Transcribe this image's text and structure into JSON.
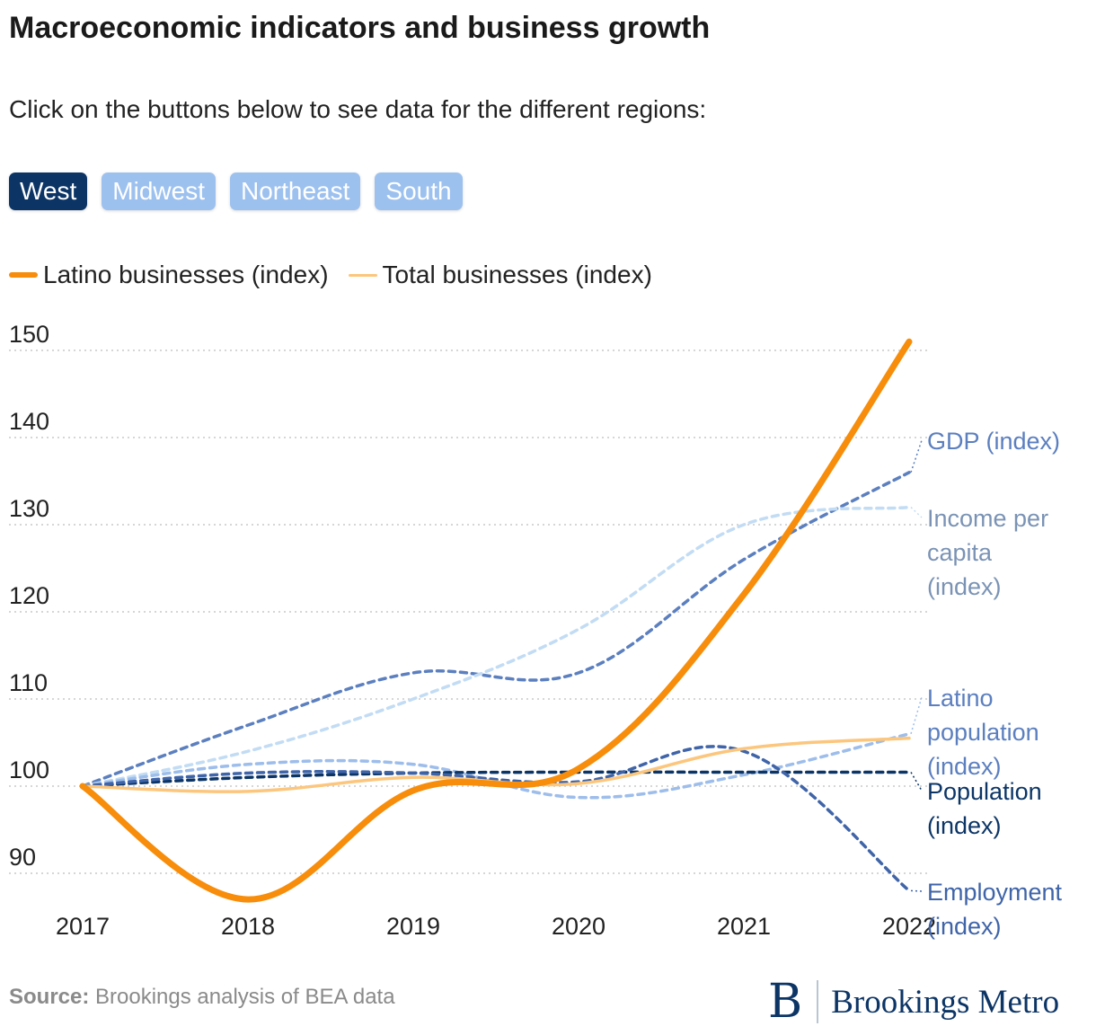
{
  "title": "Macroeconomic indicators and business growth",
  "subtitle": "Click on the buttons below to see data for the different regions:",
  "regions": {
    "active": "West",
    "buttons": [
      "West",
      "Midwest",
      "Northeast",
      "South"
    ]
  },
  "legend": {
    "latino": "Latino businesses (index)",
    "total": "Total businesses (index)"
  },
  "source": {
    "label": "Source:",
    "text": "Brookings analysis of BEA data"
  },
  "brand": {
    "initial": "B",
    "name": "Brookings Metro"
  },
  "colors": {
    "latino_businesses": "#f78d0a",
    "total_businesses": "#fcc67d",
    "gdp": "#5b7fbf",
    "income": "#c2dcf4",
    "latino_population": "#9dbdeb",
    "population": "#0c3566",
    "employment": "#3f64a8",
    "active_button": "#0c3566",
    "inactive_button": "#9dc1ee"
  },
  "chart_data": {
    "type": "line",
    "region": "West",
    "x": [
      2017,
      2018,
      2019,
      2020,
      2021,
      2022
    ],
    "ylim": [
      86,
      151
    ],
    "yticks": [
      90,
      100,
      110,
      120,
      130,
      140,
      150
    ],
    "grid": true,
    "series": [
      {
        "name": "Latino businesses (index)",
        "key": "latino_businesses",
        "style": "solid-thick",
        "values": [
          100,
          87,
          99.5,
          102,
          122,
          151
        ]
      },
      {
        "name": "Total businesses (index)",
        "key": "total_businesses",
        "style": "solid-thin",
        "values": [
          100,
          99.4,
          101,
          100.3,
          104.3,
          105.5
        ]
      },
      {
        "name": "GDP (index)",
        "key": "gdp",
        "style": "dashed",
        "label": "GDP (index)",
        "values": [
          100,
          107,
          113,
          113,
          126,
          136
        ]
      },
      {
        "name": "Income per capita (index)",
        "key": "income",
        "style": "dashed",
        "label": "Income per capita (index)",
        "values": [
          100,
          104,
          110,
          118,
          130,
          132
        ]
      },
      {
        "name": "Latino population (index)",
        "key": "latino_population",
        "style": "dashed",
        "label": "Latino population (index)",
        "values": [
          100,
          102.5,
          102.5,
          98.7,
          101.3,
          106
        ]
      },
      {
        "name": "Population (index)",
        "key": "population",
        "style": "dashed",
        "label": "Population (index)",
        "values": [
          100,
          101,
          101.5,
          101.6,
          101.6,
          101.6
        ]
      },
      {
        "name": "Employment (index)",
        "key": "employment",
        "style": "dashed",
        "label": "Employment (index)",
        "values": [
          100,
          101.5,
          101.5,
          100.5,
          104,
          88
        ]
      }
    ],
    "end_labels": {
      "gdp": [
        "GDP (index)"
      ],
      "income": [
        "Income per",
        "capita",
        "(index)"
      ],
      "latino_population": [
        "Latino",
        "population",
        "(index)"
      ],
      "population": [
        "Population",
        "(index)"
      ],
      "employment": [
        "Employment",
        "(index)"
      ]
    }
  }
}
